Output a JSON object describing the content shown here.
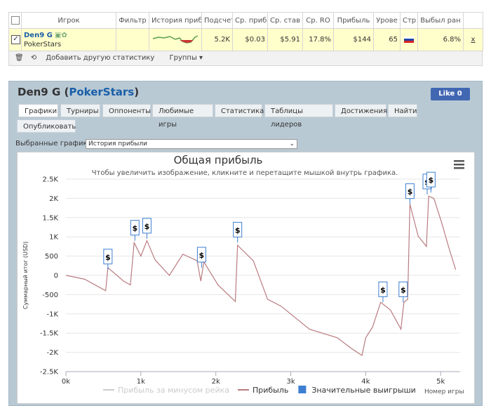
{
  "stats_table": {
    "headers": [
      "Игрок",
      "Фильтр",
      "История приб",
      "Подсчет",
      "Ср. приб",
      "Ср. став",
      "Ср. RO",
      "Прибыль",
      "Урове",
      "Стр",
      "Выбыл ран"
    ],
    "row": {
      "player": "Den9 G",
      "site": "PokerStars",
      "cells": [
        "5.2K",
        "$0.03",
        "$5.91",
        "17.8%",
        "$144",
        "65",
        "6.8%"
      ],
      "remove": "x"
    }
  },
  "toolbar": {
    "add_stat": "Добавить другую статистику",
    "groups": "Группы"
  },
  "panel": {
    "title": [
      "Den9 G (",
      "PokerStars",
      ")"
    ],
    "like": "Like",
    "like_count": "0",
    "tabs": [
      "Графики",
      "Турниры",
      "Оппоненты",
      "Любимые игры",
      "Статистика",
      "Таблицы лидеров",
      "Достижения",
      "Найти",
      "Опубликовать"
    ],
    "select_label": "Выбранные графики:",
    "select_value": "История прибыли"
  },
  "chart_data": {
    "type": "line",
    "title": "Общая прибыль",
    "subtitle": "Чтобы увеличить изображение, кликните и перетащите мышкой внутрь графика.",
    "y_label": "Суммарный итог (USD)",
    "x_label": "Номер игры",
    "xlim": [
      0,
      5260
    ],
    "ylim": [
      -2500,
      2500
    ],
    "xticks": [
      {
        "value": 0,
        "label": "0k"
      },
      {
        "value": 1000,
        "label": "1k"
      },
      {
        "value": 2000,
        "label": "2k"
      },
      {
        "value": 3000,
        "label": "3k"
      },
      {
        "value": 4000,
        "label": "4k"
      },
      {
        "value": 5000,
        "label": "5k"
      }
    ],
    "yticks": [
      {
        "value": -2500,
        "label": "-2.5K"
      },
      {
        "value": -2000,
        "label": "-2K"
      },
      {
        "value": -1500,
        "label": "-1.5K"
      },
      {
        "value": -1000,
        "label": "-1K"
      },
      {
        "value": -500,
        "label": "-500"
      },
      0,
      500,
      {
        "value": 1000,
        "label": "1K"
      },
      {
        "value": 1500,
        "label": "1.5K"
      },
      {
        "value": 2000,
        "label": "2K"
      },
      {
        "value": 2500,
        "label": "2.5K"
      }
    ],
    "grid": true,
    "series": [
      {
        "name": "Прибыль за минусом рейка",
        "color": "#cccccc",
        "hidden": true
      },
      {
        "name": "Прибыль",
        "color": "#b97c80",
        "x": [
          0,
          250,
          530,
          560,
          770,
          860,
          910,
          1000,
          1080,
          1190,
          1380,
          1560,
          1750,
          1800,
          1840,
          2030,
          2260,
          2290,
          2500,
          2690,
          2870,
          3250,
          3620,
          3810,
          3950,
          4000,
          4090,
          4200,
          4330,
          4470,
          4510,
          4560,
          4590,
          4700,
          4810,
          4840,
          4910,
          5010,
          5120,
          5200
        ],
        "values": [
          0,
          -100,
          -400,
          200,
          -150,
          -250,
          850,
          500,
          900,
          400,
          0,
          550,
          380,
          -150,
          350,
          -250,
          -680,
          780,
          380,
          -620,
          -800,
          -1400,
          -1620,
          -1900,
          -2080,
          -1620,
          -1350,
          -700,
          -900,
          -1400,
          -700,
          -620,
          1850,
          1020,
          750,
          2060,
          2000,
          1390,
          650,
          150
        ]
      },
      {
        "name": "Значительные выигрыши",
        "color": "#3d7fd1",
        "marker_label": "$",
        "x": [
          560,
          920,
          1080,
          1810,
          2290,
          4230,
          4500,
          4590,
          4820,
          4870
        ],
        "values": [
          150,
          900,
          950,
          200,
          850,
          -700,
          -700,
          1850,
          2100,
          2150
        ]
      }
    ]
  }
}
